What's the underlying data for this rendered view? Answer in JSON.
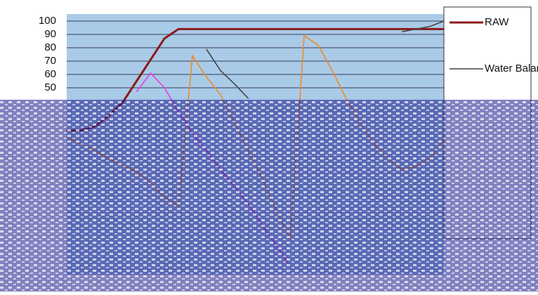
{
  "chart_data": {
    "type": "line",
    "categories": [
      null,
      null,
      null,
      null,
      null,
      null,
      null,
      null,
      null,
      null,
      null,
      null,
      null,
      null,
      null,
      null,
      null,
      null,
      null,
      null,
      null,
      null,
      null,
      null,
      null,
      null,
      null,
      null
    ],
    "ylim": [
      -90,
      100
    ],
    "yticks": [
      50,
      60,
      70,
      80,
      90,
      100
    ],
    "grid": true,
    "series": [
      {
        "name": "RAW",
        "color": "#8b1a1a",
        "values": [
          18,
          18,
          21,
          29,
          39,
          55,
          71,
          87,
          94,
          94,
          94,
          94,
          94,
          94,
          94,
          94,
          94,
          94,
          94,
          94,
          94,
          94,
          94,
          94,
          94,
          94,
          94,
          94
        ]
      },
      {
        "name": "Water Balance",
        "color": "#444444",
        "values": [
          null,
          null,
          null,
          null,
          null,
          null,
          null,
          null,
          null,
          null,
          79,
          63,
          53,
          42,
          null,
          null,
          null,
          null,
          null,
          null,
          null,
          null,
          null,
          null,
          92,
          94,
          96,
          100
        ]
      },
      {
        "color": "#f08a24",
        "values": [
          13,
          8,
          3,
          -3,
          -8,
          -13,
          -21,
          -32,
          -39,
          74,
          58,
          45,
          24,
          3,
          -18,
          -42,
          -63,
          89,
          82,
          63,
          42,
          24,
          8,
          -3,
          -11,
          -9,
          -3,
          11
        ]
      },
      {
        "color": "#e040e0",
        "values": [
          null,
          null,
          null,
          null,
          null,
          47,
          61,
          50,
          32,
          16,
          3,
          -11,
          -24,
          -37,
          -53,
          -68,
          -84,
          null,
          null,
          null,
          null,
          null,
          null,
          null,
          null,
          null,
          null,
          null
        ]
      }
    ]
  }
}
